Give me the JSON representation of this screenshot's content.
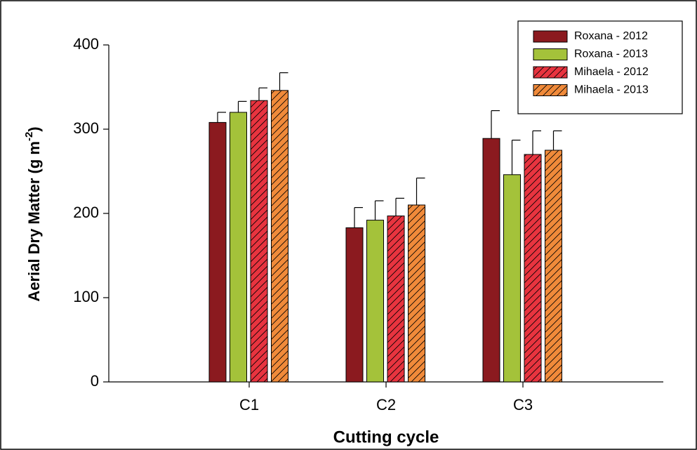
{
  "chart_data": {
    "type": "bar",
    "x_label": "Cutting cycle",
    "y_label": [
      "Aerial Dry Matter (g m",
      "-2",
      ")"
    ],
    "categories": [
      "C1",
      "C2",
      "C3"
    ],
    "series": [
      {
        "name": "Roxana - 2012",
        "color": "#8b1a1f",
        "hatch": false,
        "values": [
          308,
          183,
          289
        ],
        "errors": [
          12,
          24,
          33
        ]
      },
      {
        "name": "Roxana - 2013",
        "color": "#a4c23a",
        "hatch": false,
        "values": [
          320,
          192,
          246
        ],
        "errors": [
          13,
          23,
          41
        ]
      },
      {
        "name": "Mihaela - 2012",
        "color": "#e8343f",
        "hatch": true,
        "values": [
          334,
          197,
          270
        ],
        "errors": [
          15,
          21,
          28
        ]
      },
      {
        "name": "Mihaela - 2013",
        "color": "#f08a3a",
        "hatch": true,
        "values": [
          346,
          210,
          275
        ],
        "errors": [
          21,
          32,
          23
        ]
      }
    ],
    "ylim": [
      0,
      400
    ],
    "yticks": [
      0,
      100,
      200,
      300,
      400
    ],
    "legend": "upper right"
  }
}
